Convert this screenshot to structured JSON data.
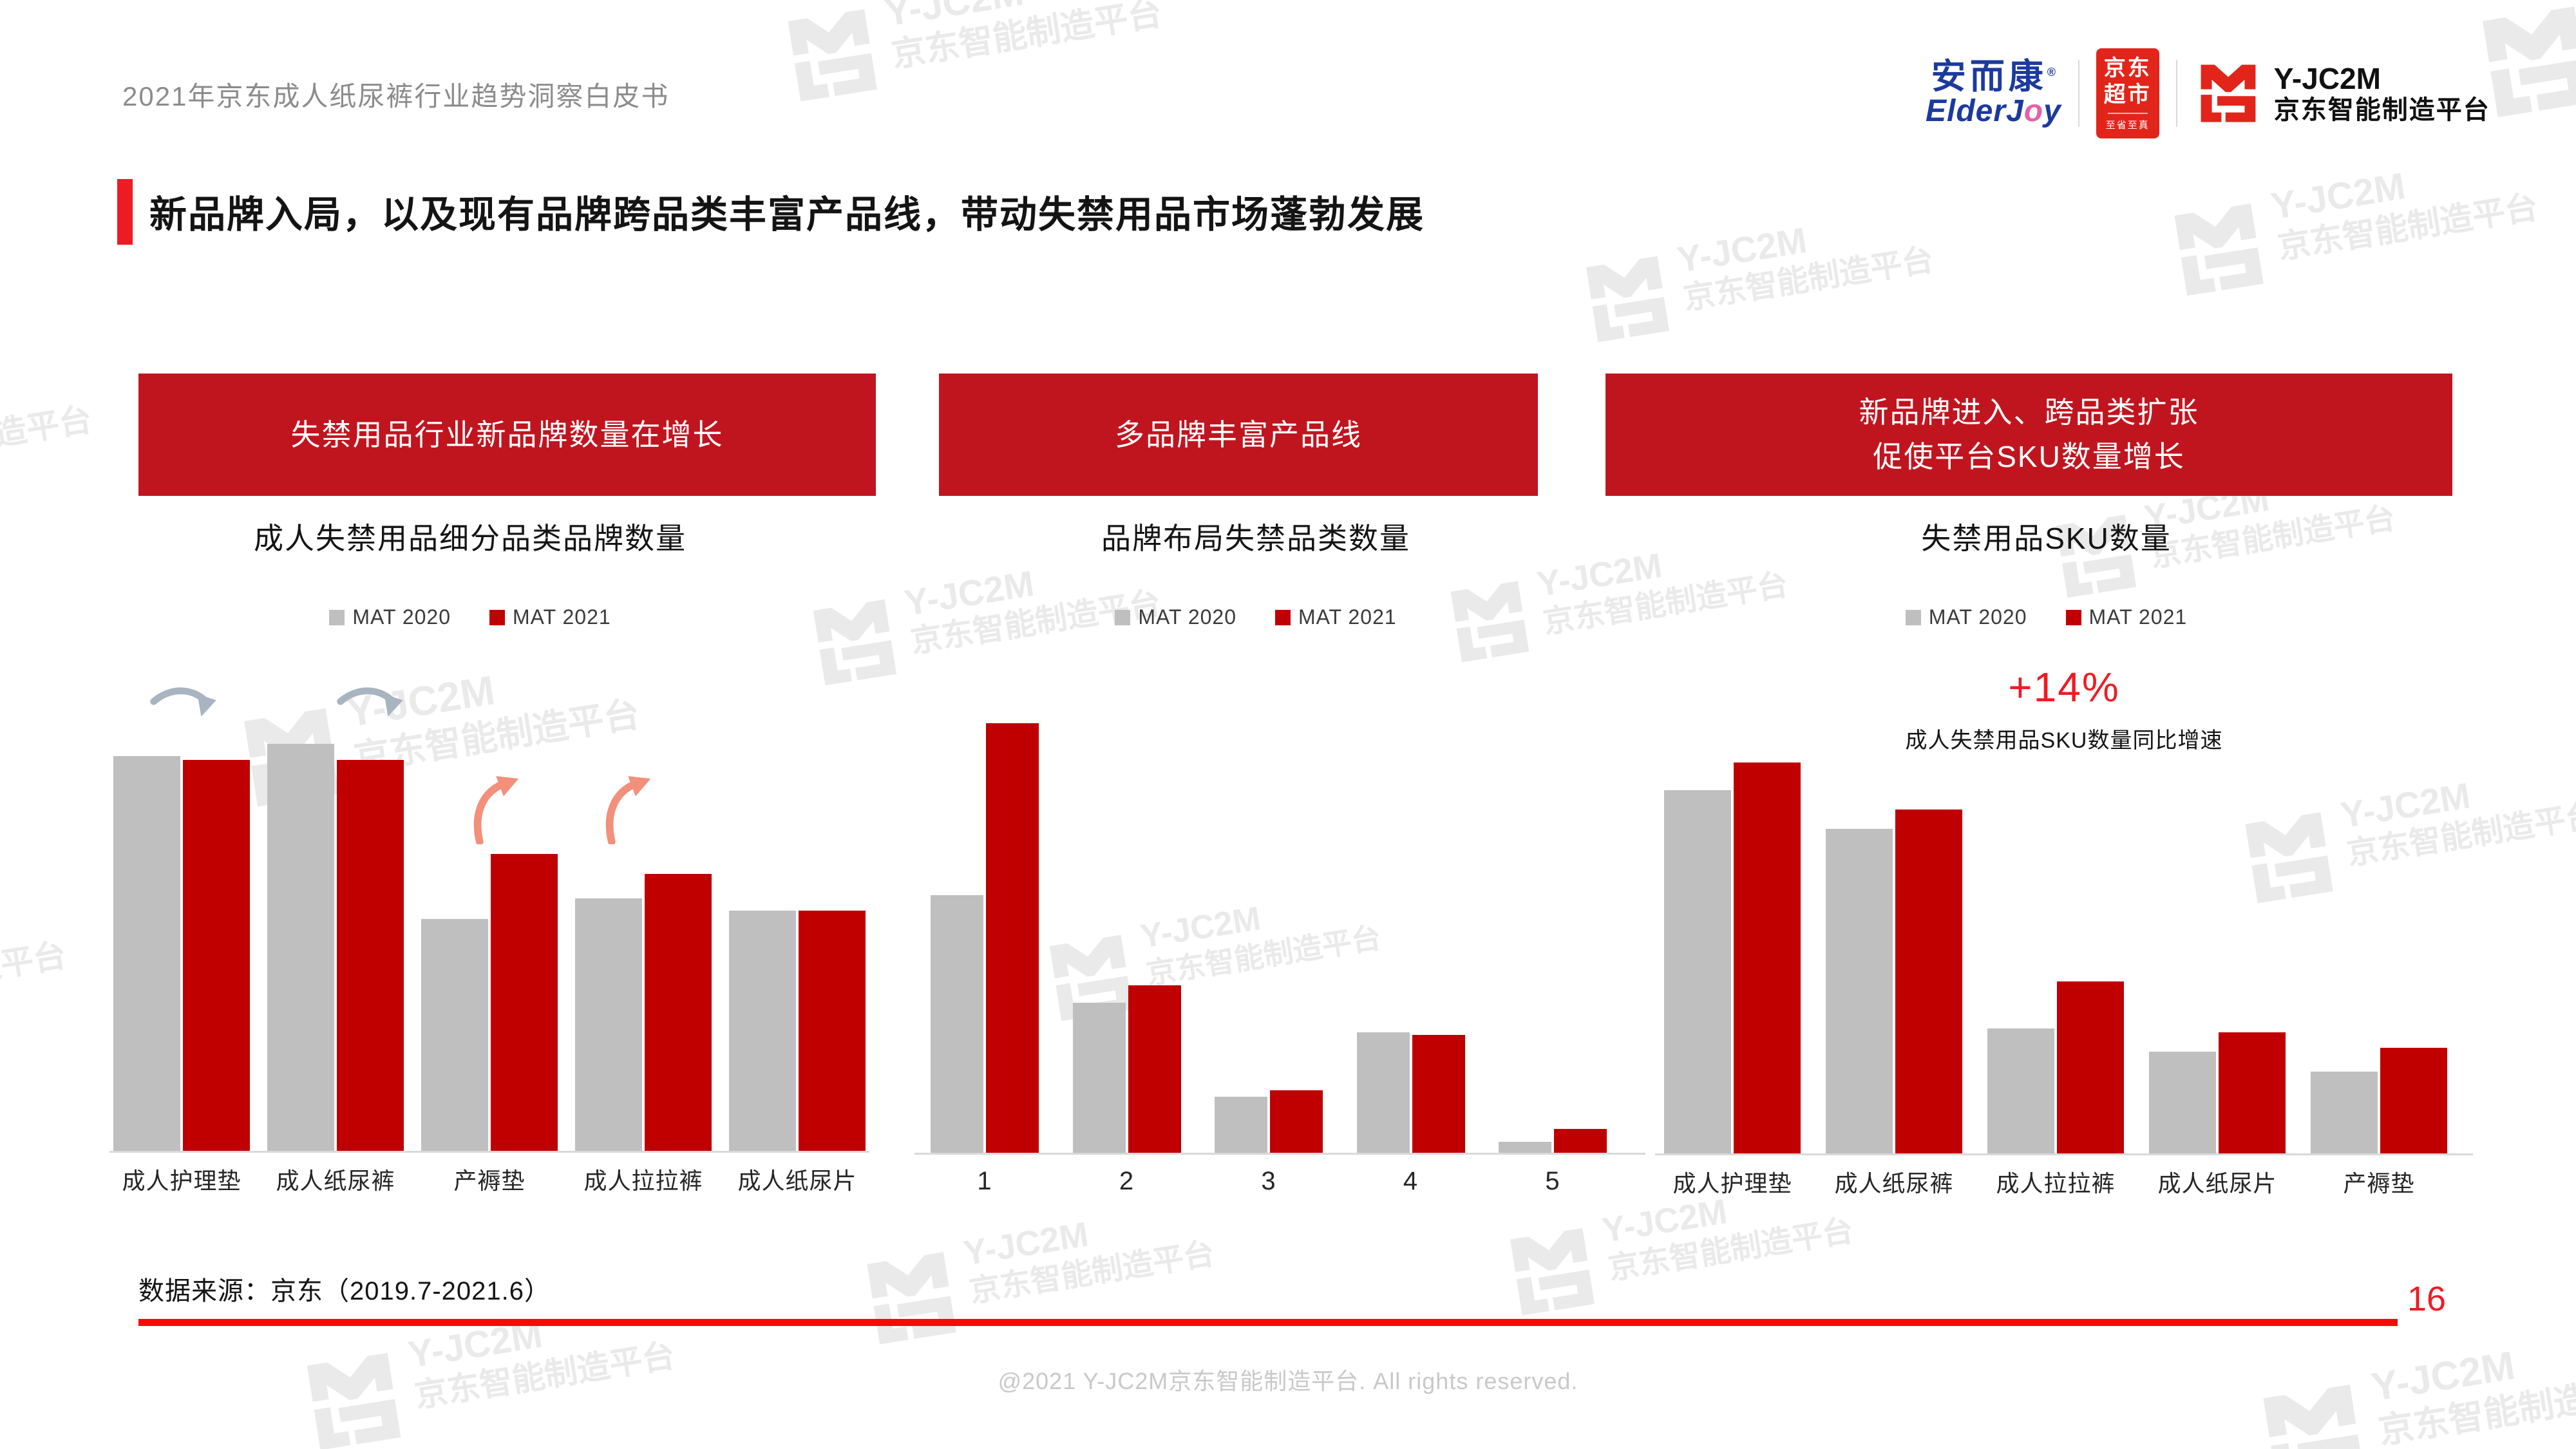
{
  "header": {
    "title": "2021年京东成人纸尿裤行业趋势洞察白皮书"
  },
  "logos": {
    "elderjoy_cn": "安而康",
    "elderjoy_reg": "®",
    "elderjoy_en_pre": "ElderJ",
    "elderjoy_en_o": "o",
    "elderjoy_en_post": "y",
    "jd_market_line1": "京东",
    "jd_market_line2": "超市",
    "jd_market_sub": "至省至真",
    "jc2m_name": "Y-JC2M",
    "jc2m_cn": "京东智能制造平台"
  },
  "watermark": {
    "line1": "Y-JC2M",
    "line2": "京东智能制造平台"
  },
  "title": {
    "text": "新品牌入局，以及现有品牌跨品类丰富产品线，带动失禁用品市场蓬勃发展"
  },
  "legend": {
    "mat2020": "MAT 2020",
    "mat2021": "MAT 2021"
  },
  "colors": {
    "bar_gray": "#BFBFBF",
    "bar_red": "#C00000",
    "banner_red": "#C0151F",
    "accent_red": "#ED1C24",
    "line_red": "#F40B0B",
    "jd_red": "#E1251B",
    "arrow_down_gray": "#A9B4C1",
    "arrow_up_salmon": "#F2907B"
  },
  "panels": [
    {
      "banner_lines": [
        "失禁用品行业新品牌数量在增长"
      ],
      "subtitle": "成人失禁用品细分品类品牌数量"
    },
    {
      "banner_lines": [
        "多品牌丰富产品线"
      ],
      "subtitle": "品牌布局失禁品类数量"
    },
    {
      "banner_lines": [
        "新品牌进入、跨品类扩张",
        "促使平台SKU数量增长"
      ],
      "subtitle": "失禁用品SKU数量"
    }
  ],
  "annotation": {
    "value": "+14%",
    "label": "成人失禁用品SKU数量同比增速"
  },
  "footer": {
    "source": "数据来源：京东（2019.7-2021.6）",
    "page_number": "16",
    "copyright": "@2021 Y-JC2M京东智能制造平台. All rights reserved."
  },
  "chart_data": [
    {
      "type": "bar",
      "title": "成人失禁用品细分品类品牌数量",
      "categories": [
        "成人护理垫",
        "成人纸尿裤",
        "产褥垫",
        "成人拉拉裤",
        "成人纸尿片"
      ],
      "series": [
        {
          "name": "MAT 2020",
          "color": "#BFBFBF",
          "values": [
            97,
            100,
            57,
            62,
            59
          ]
        },
        {
          "name": "MAT 2021",
          "color": "#C00000",
          "values": [
            96,
            96,
            73,
            68,
            59
          ]
        }
      ],
      "value_note": "no numeric axis shown; values are relative bar heights, tallest bar = 100",
      "legend_position": "top",
      "grid": false,
      "annotations": [
        "gray decline arrows above 成人护理垫 and 成人纸尿裤",
        "salmon growth arrows above 产褥垫 and 成人拉拉裤"
      ]
    },
    {
      "type": "bar",
      "title": "品牌布局失禁品类数量",
      "categories": [
        "1",
        "2",
        "3",
        "4",
        "5"
      ],
      "series": [
        {
          "name": "MAT 2020",
          "color": "#BFBFBF",
          "values": [
            60,
            35,
            13,
            28,
            2.5
          ]
        },
        {
          "name": "MAT 2021",
          "color": "#C00000",
          "values": [
            100,
            39,
            14.5,
            27.5,
            5.5
          ]
        }
      ],
      "value_note": "no numeric axis shown; values are relative bar heights, tallest bar = 100",
      "legend_position": "top",
      "grid": false
    },
    {
      "type": "bar",
      "title": "失禁用品SKU数量",
      "categories": [
        "成人护理垫",
        "成人纸尿裤",
        "成人拉拉裤",
        "成人纸尿片",
        "产褥垫"
      ],
      "series": [
        {
          "name": "MAT 2020",
          "color": "#BFBFBF",
          "values": [
            93,
            83,
            32,
            26,
            21
          ]
        },
        {
          "name": "MAT 2021",
          "color": "#C00000",
          "values": [
            100,
            88,
            44,
            31,
            27
          ]
        }
      ],
      "value_note": "no numeric axis shown; values are relative bar heights, tallest bar = 100",
      "legend_position": "top",
      "grid": false,
      "annotation": {
        "value": "+14%",
        "label": "成人失禁用品SKU数量同比增速"
      }
    }
  ]
}
